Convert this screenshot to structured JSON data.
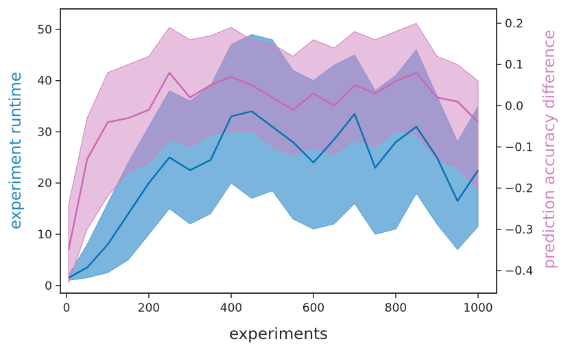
{
  "chart_data": {
    "type": "line",
    "xlabel": "experiments",
    "ylabel_left": "experiment runtime",
    "ylabel_right": "prediction accuracy difference",
    "xlim": [
      -15,
      1045
    ],
    "ylim_left": [
      -1.5,
      54
    ],
    "ylim_right": [
      -0.455,
      0.235
    ],
    "x_ticks": [
      0,
      200,
      400,
      600,
      800,
      1000
    ],
    "y_ticks_left": [
      0,
      10,
      20,
      30,
      40,
      50
    ],
    "y_ticks_right": [
      0.2,
      0.1,
      0.0,
      -0.1,
      -0.2,
      -0.3,
      -0.4
    ],
    "y_tick_labels_right": [
      "0.2",
      "0.1",
      "0.0",
      "−0.1",
      "−0.2",
      "−0.3",
      "−0.4"
    ],
    "x": [
      5,
      50,
      100,
      150,
      200,
      250,
      300,
      350,
      400,
      450,
      500,
      550,
      600,
      650,
      700,
      750,
      800,
      850,
      900,
      950,
      1000
    ],
    "series": [
      {
        "axis": "left",
        "color": "#0072b2",
        "band_color": "#56a0d3",
        "mean": [
          1.5,
          3.5,
          8.0,
          14.0,
          20.0,
          25.0,
          22.5,
          24.5,
          33.0,
          34.0,
          31.0,
          28.0,
          24.0,
          28.5,
          33.5,
          23.0,
          28.0,
          31.0,
          25.0,
          16.5,
          22.5
        ],
        "lower": [
          1.0,
          1.5,
          2.5,
          5.0,
          10.0,
          15.0,
          12.0,
          14.0,
          20.0,
          17.0,
          18.5,
          13.0,
          11.0,
          12.0,
          16.0,
          10.0,
          11.0,
          18.0,
          12.0,
          7.0,
          11.5
        ],
        "upper": [
          2.0,
          8.0,
          16.0,
          24.0,
          31.0,
          38.0,
          36.0,
          39.0,
          47.0,
          49.0,
          48.0,
          42.0,
          40.0,
          43.0,
          45.0,
          38.0,
          41.0,
          46.0,
          37.0,
          28.0,
          35.0
        ]
      },
      {
        "axis": "right",
        "color": "#cc66b3",
        "band_color": "#d07fbf",
        "mean": [
          -0.35,
          -0.13,
          -0.04,
          -0.03,
          -0.01,
          0.08,
          0.02,
          0.05,
          0.07,
          0.05,
          0.02,
          -0.01,
          0.03,
          0.0,
          0.05,
          0.03,
          0.06,
          0.08,
          0.02,
          0.01,
          -0.04
        ],
        "lower": [
          -0.43,
          -0.3,
          -0.22,
          -0.16,
          -0.14,
          -0.08,
          -0.1,
          -0.07,
          -0.06,
          -0.06,
          -0.1,
          -0.12,
          -0.1,
          -0.12,
          -0.08,
          -0.1,
          -0.06,
          -0.07,
          -0.13,
          -0.15,
          -0.2
        ],
        "upper": [
          -0.24,
          -0.03,
          0.08,
          0.1,
          0.12,
          0.19,
          0.16,
          0.17,
          0.19,
          0.16,
          0.15,
          0.12,
          0.16,
          0.14,
          0.18,
          0.16,
          0.18,
          0.2,
          0.12,
          0.1,
          0.06
        ]
      }
    ]
  },
  "colors": {
    "left_axis_label": "#1f88c0",
    "right_axis_label": "#d485c3",
    "spine": "#262626"
  }
}
